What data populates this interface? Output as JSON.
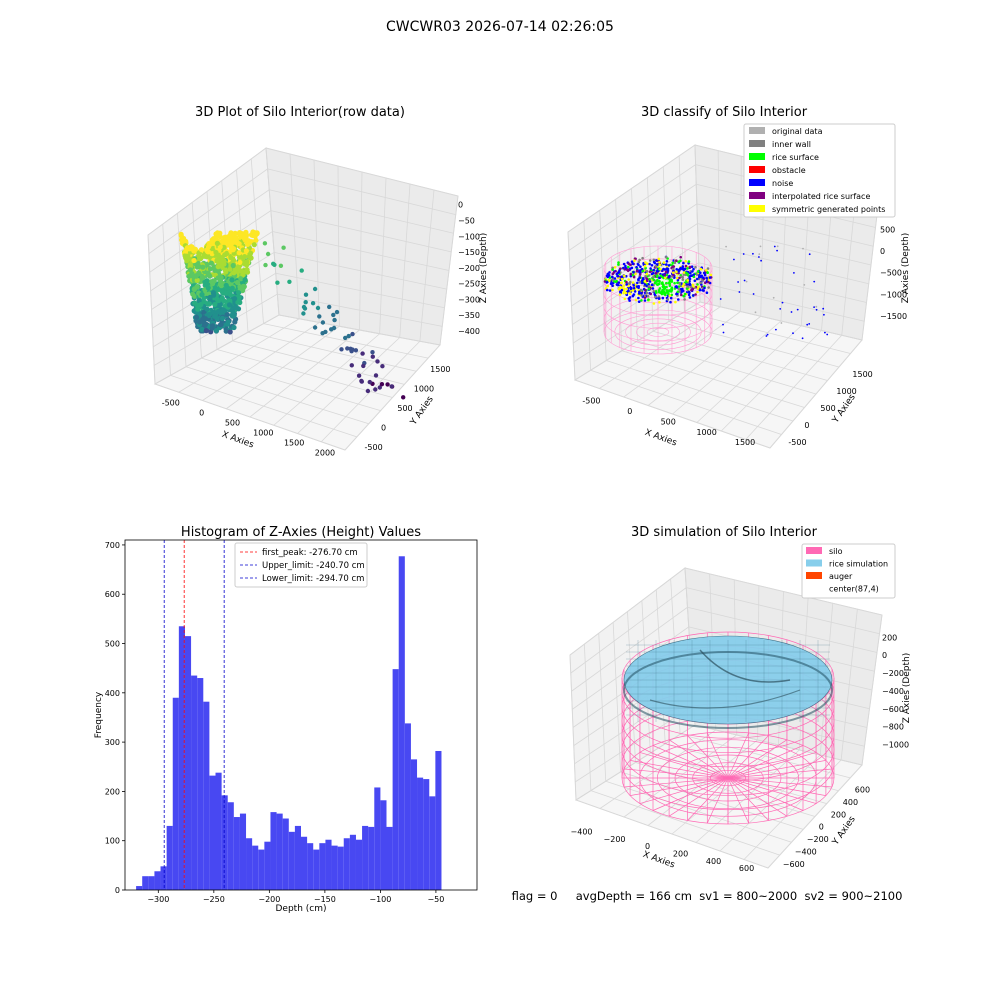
{
  "suptitle": "CWCWR03 2026-07-14 02:26:05",
  "chart_data": [
    {
      "type": "scatter3d",
      "title": "3D Plot of Silo Interior(row data)",
      "xlabel": "X Axies",
      "ylabel": "Y Axies",
      "zlabel": "Z Axies (Depth)",
      "xticks": [
        "-500",
        "0",
        "500",
        "1000",
        "1500",
        "2000"
      ],
      "yticks": [
        "-500",
        "0",
        "500",
        "1000",
        "1500"
      ],
      "zticks": [
        "0",
        "−50",
        "−100",
        "−150",
        "−200",
        "−250",
        "−300",
        "−350",
        "−400"
      ],
      "colormap": "viridis"
    },
    {
      "type": "scatter3d",
      "title": "3D classify of Silo Interior",
      "xlabel": "X Axies",
      "ylabel": "Y Axies",
      "zlabel": "Z Axies (Depth)",
      "xticks": [
        "-500",
        "0",
        "500",
        "1000",
        "1500"
      ],
      "yticks": [
        "-500",
        "0",
        "500",
        "1000",
        "1500"
      ],
      "zticks": [
        "500",
        "0",
        "−500",
        "−1000",
        "−1500"
      ],
      "legend_position": "top-right",
      "legend": [
        {
          "label": "original data",
          "color": "#b0b0b0"
        },
        {
          "label": "inner wall",
          "color": "#808080"
        },
        {
          "label": "rice surface",
          "color": "#00ff00"
        },
        {
          "label": "obstacle",
          "color": "#ff0000"
        },
        {
          "label": "noise",
          "color": "#0000ff"
        },
        {
          "label": "interpolated rice surface",
          "color": "#800080"
        },
        {
          "label": "symmetric generated points",
          "color": "#ffff00"
        }
      ]
    },
    {
      "type": "bar",
      "title": "Histogram of Z-Axies (Height) Values",
      "xlabel": "Depth (cm)",
      "ylabel": "Frequency",
      "xlim": [
        -330,
        -13
      ],
      "ylim": [
        0,
        710
      ],
      "xticks": [
        -300,
        -250,
        -200,
        -150,
        -100,
        -50
      ],
      "xtick_labels": [
        "−300",
        "−250",
        "−200",
        "−150",
        "−100",
        "−50"
      ],
      "yticks": [
        0,
        100,
        200,
        300,
        400,
        500,
        600,
        700
      ],
      "bar_color": "#4848f2",
      "bin_start": -320,
      "bin_width": 5.5,
      "values": [
        8,
        28,
        28,
        38,
        48,
        130,
        390,
        535,
        515,
        435,
        430,
        382,
        232,
        238,
        192,
        178,
        148,
        155,
        105,
        90,
        82,
        98,
        158,
        155,
        145,
        118,
        130,
        108,
        95,
        82,
        95,
        102,
        90,
        88,
        105,
        112,
        102,
        130,
        128,
        208,
        182,
        128,
        448,
        677,
        338,
        265,
        228,
        225,
        190,
        282
      ],
      "vlines": [
        {
          "label": "first_peak: -276.70 cm",
          "x": -276.7,
          "color": "#ff0000"
        },
        {
          "label": "Upper_limit: -240.70 cm",
          "x": -240.7,
          "color": "#0000cc"
        },
        {
          "label": "Lower_limit: -294.70 cm",
          "x": -294.7,
          "color": "#0000cc"
        }
      ],
      "legend_position": "top"
    },
    {
      "type": "surface3d",
      "title": "3D simulation of Silo Interior",
      "xlabel": "X Axies",
      "ylabel": "Y Axies",
      "zlabel": "Z Axies (Depth)",
      "xticks": [
        "−400",
        "−200",
        "0",
        "200",
        "400",
        "600"
      ],
      "yticks": [
        "−600",
        "−400",
        "−200",
        "0",
        "200",
        "400",
        "600"
      ],
      "zticks": [
        "200",
        "0",
        "−200",
        "−400",
        "−600",
        "−800",
        "−1000"
      ],
      "legend_position": "top-right",
      "legend": [
        {
          "label": "silo",
          "color": "#ff69b4"
        },
        {
          "label": "rice simulation",
          "color": "#87ceeb"
        },
        {
          "label": "auger",
          "color": "#ff4500"
        },
        {
          "label": "center(87,4)",
          "color": ""
        }
      ]
    }
  ],
  "status_line": "flag = 0     avgDepth = 166 cm  sv1 = 800~2000  sv2 = 900~2100"
}
